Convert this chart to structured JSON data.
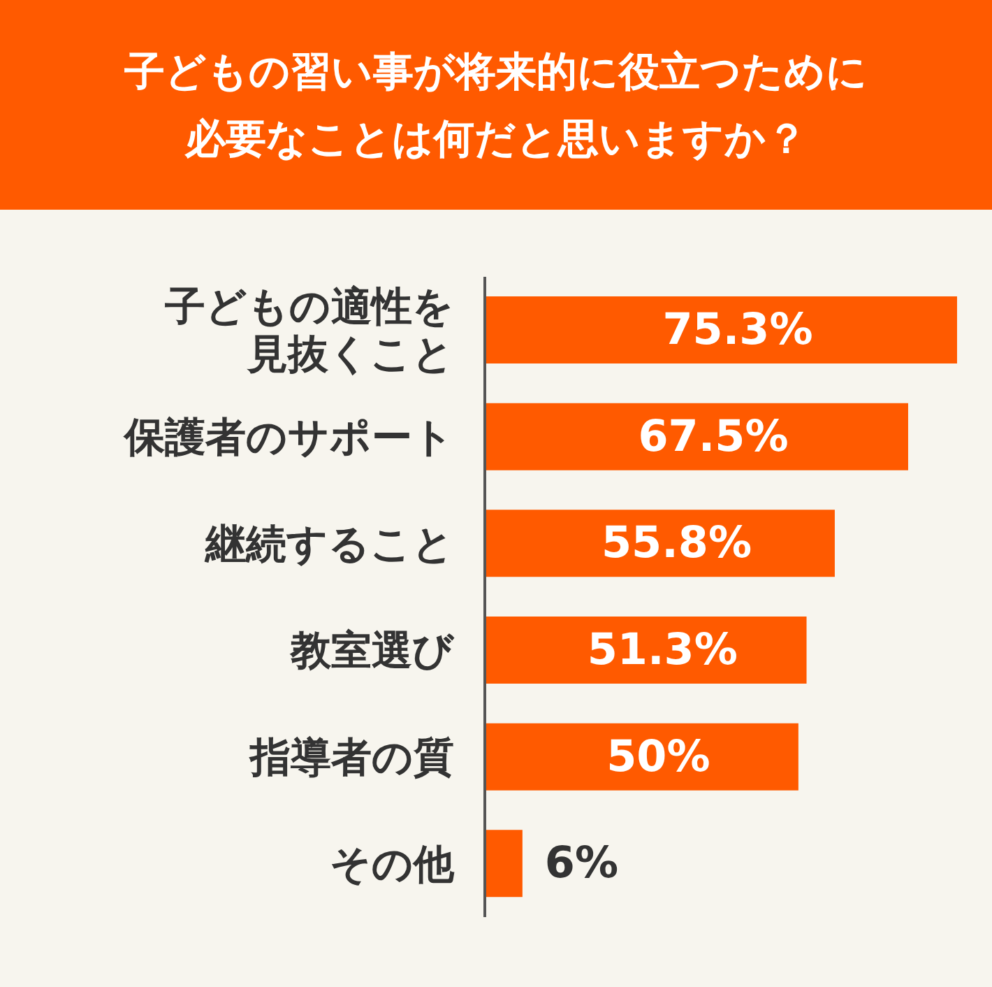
{
  "chart_data": {
    "type": "bar",
    "orientation": "horizontal",
    "title": "子どもの習い事が将来的に役立つために必要なことは何だと思いますか？",
    "categories": [
      "子どもの適性を見抜くこと",
      "保護者のサポート",
      "継続すること",
      "教室選び",
      "指導者の質",
      "その他"
    ],
    "values": [
      75.3,
      67.5,
      55.8,
      51.3,
      50,
      6
    ],
    "value_labels": [
      "75.3%",
      "67.5%",
      "55.8%",
      "51.3%",
      "50%",
      "6%"
    ],
    "color": "#ff5a00",
    "grid": false,
    "legend": false
  }
}
